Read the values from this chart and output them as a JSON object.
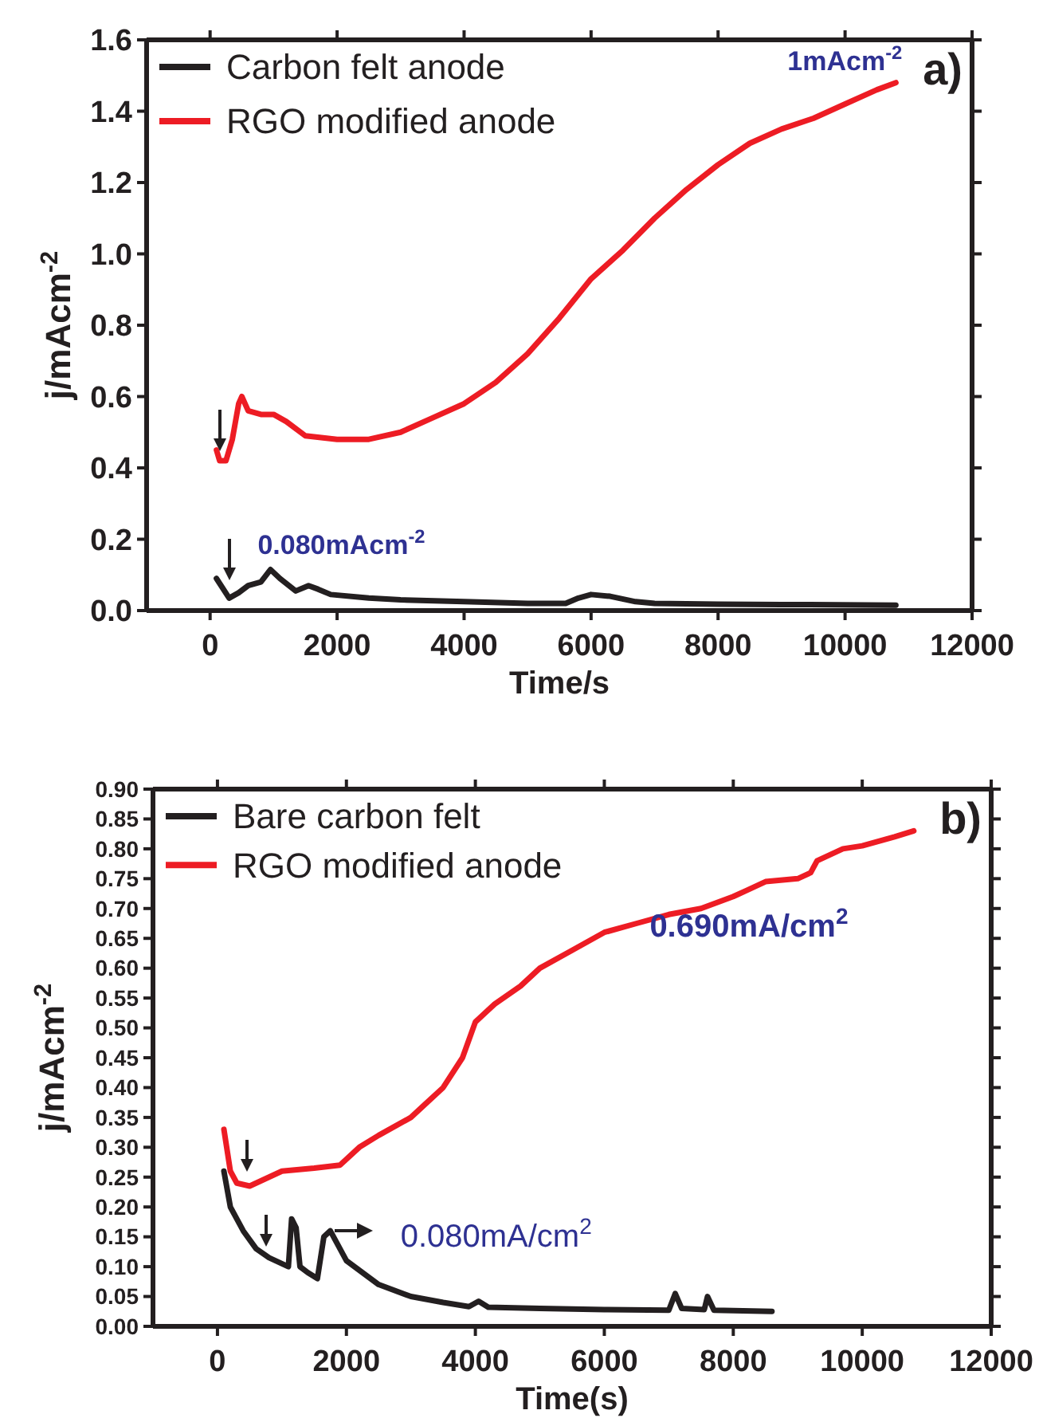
{
  "chart_data": [
    {
      "type": "line",
      "xlabel": "Time/s",
      "ylabel": "j/mAcm$^{-2}$",
      "xlim": [
        -1000,
        12000
      ],
      "ylim": [
        0,
        1.6
      ],
      "xticks": [
        0,
        2000,
        4000,
        6000,
        8000,
        10000,
        12000
      ],
      "yticks": [
        {
          "value": 0,
          "label": "0.0"
        },
        {
          "value": 0.2,
          "label": "0.2"
        },
        {
          "value": 0.4,
          "label": "0.4"
        },
        {
          "value": 0.6,
          "label": "0.6"
        },
        {
          "value": 0.8,
          "label": "0.8"
        },
        {
          "value": 1.0,
          "label": "1.0"
        },
        {
          "value": 1.2,
          "label": "1.2"
        },
        {
          "value": 1.4,
          "label": "1.4"
        },
        {
          "value": 1.6,
          "label": "1.6"
        }
      ],
      "legend": "top left",
      "grid": false,
      "marker": "none",
      "line_style": "solid",
      "annotations": [
        "a)",
        {
          "text": "1mAcm$^{-2}$",
          "x": 10800,
          "y": 1.48
        },
        {
          "text": "0.080mAcm$^{-2}$",
          "x": 950,
          "y": 0.115
        }
      ],
      "series": [
        {
          "name": "Carbon felt anode",
          "color": "#231f20",
          "x": [
            100,
            300,
            450,
            600,
            800,
            950,
            1100,
            1350,
            1550,
            1700,
            1900,
            2500,
            3000,
            4000,
            5000,
            5600,
            5800,
            6000,
            6300,
            6700,
            7000,
            8000,
            9000,
            10800
          ],
          "values": [
            0.09,
            0.035,
            0.05,
            0.07,
            0.08,
            0.115,
            0.09,
            0.055,
            0.07,
            0.06,
            0.045,
            0.035,
            0.03,
            0.025,
            0.02,
            0.02,
            0.035,
            0.045,
            0.04,
            0.025,
            0.02,
            0.018,
            0.017,
            0.015
          ]
        },
        {
          "name": "RGO modified anode",
          "color": "#ed1c24",
          "x": [
            100,
            150,
            250,
            350,
            450,
            500,
            600,
            800,
            1000,
            1200,
            1500,
            2000,
            2500,
            3000,
            3500,
            4000,
            4500,
            5000,
            5500,
            6000,
            6500,
            7000,
            7500,
            8000,
            8500,
            9000,
            9500,
            10000,
            10500,
            10800
          ],
          "values": [
            0.45,
            0.42,
            0.42,
            0.48,
            0.58,
            0.6,
            0.56,
            0.55,
            0.55,
            0.53,
            0.49,
            0.48,
            0.48,
            0.5,
            0.54,
            0.58,
            0.64,
            0.72,
            0.82,
            0.93,
            1.01,
            1.1,
            1.18,
            1.25,
            1.31,
            1.35,
            1.38,
            1.42,
            1.46,
            1.48
          ]
        }
      ]
    },
    {
      "type": "line",
      "xlabel": "Time(s)",
      "ylabel": "j/mAcm$^{-2}$",
      "xlim": [
        -1000,
        12000
      ],
      "ylim": [
        0,
        0.9
      ],
      "xticks": [
        0,
        2000,
        4000,
        6000,
        8000,
        10000,
        12000
      ],
      "yticks": [
        {
          "value": 0,
          "label": "0.00"
        },
        {
          "value": 0.05,
          "label": "0.05"
        },
        {
          "value": 0.1,
          "label": "0.10"
        },
        {
          "value": 0.15,
          "label": "0.15"
        },
        {
          "value": 0.2,
          "label": "0.20"
        },
        {
          "value": 0.25,
          "label": "0.25"
        },
        {
          "value": 0.3,
          "label": "0.30"
        },
        {
          "value": 0.35,
          "label": "0.35"
        },
        {
          "value": 0.4,
          "label": "0.40"
        },
        {
          "value": 0.45,
          "label": "0.45"
        },
        {
          "value": 0.5,
          "label": "0.50"
        },
        {
          "value": 0.55,
          "label": "0.55"
        },
        {
          "value": 0.6,
          "label": "0.60"
        },
        {
          "value": 0.65,
          "label": "0.65"
        },
        {
          "value": 0.7,
          "label": "0.70"
        },
        {
          "value": 0.75,
          "label": "0.75"
        },
        {
          "value": 0.8,
          "label": "0.80"
        },
        {
          "value": 0.85,
          "label": "0.85"
        },
        {
          "value": 0.9,
          "label": "0.90"
        }
      ],
      "legend": "top left",
      "grid": false,
      "marker": "none",
      "line_style": "solid",
      "annotations": [
        "b)",
        {
          "text": "0.690mA/cm$^{2}$",
          "x": 7000,
          "y": 0.69
        },
        {
          "text": "0.080mA/cm$^{2}$",
          "x": 1900,
          "y": 0.15
        }
      ],
      "series": [
        {
          "name": "Bare carbon felt",
          "color": "#231f20",
          "x": [
            100,
            200,
            400,
            600,
            800,
            1000,
            1100,
            1150,
            1220,
            1280,
            1400,
            1550,
            1650,
            1750,
            1850,
            2000,
            2500,
            3000,
            3500,
            3900,
            4050,
            4200,
            5000,
            6000,
            7000,
            7100,
            7200,
            7550,
            7600,
            7700,
            8600
          ],
          "values": [
            0.26,
            0.2,
            0.16,
            0.13,
            0.115,
            0.105,
            0.1,
            0.18,
            0.165,
            0.1,
            0.09,
            0.08,
            0.15,
            0.16,
            0.14,
            0.11,
            0.07,
            0.05,
            0.04,
            0.033,
            0.042,
            0.032,
            0.03,
            0.028,
            0.027,
            0.055,
            0.03,
            0.028,
            0.05,
            0.027,
            0.025
          ]
        },
        {
          "name": "RGO modified anode",
          "color": "#ed1c24",
          "x": [
            100,
            200,
            300,
            500,
            800,
            1000,
            1500,
            1900,
            2200,
            2500,
            3000,
            3200,
            3500,
            3800,
            4000,
            4300,
            4700,
            5000,
            5500,
            6000,
            6500,
            7000,
            7500,
            8000,
            8200,
            8500,
            9000,
            9200,
            9300,
            9700,
            10000,
            10500,
            10800
          ],
          "values": [
            0.33,
            0.26,
            0.24,
            0.235,
            0.25,
            0.26,
            0.265,
            0.27,
            0.3,
            0.32,
            0.35,
            0.37,
            0.4,
            0.45,
            0.51,
            0.54,
            0.57,
            0.6,
            0.63,
            0.66,
            0.675,
            0.69,
            0.7,
            0.72,
            0.73,
            0.745,
            0.75,
            0.76,
            0.78,
            0.8,
            0.805,
            0.82,
            0.83
          ]
        }
      ]
    }
  ]
}
